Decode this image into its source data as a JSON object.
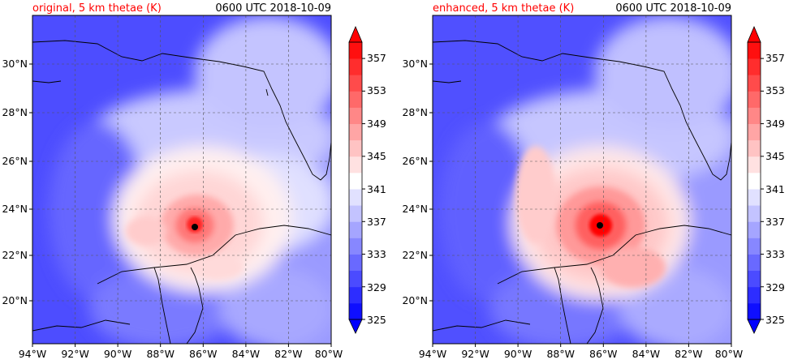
{
  "panels": [
    {
      "id": "original",
      "title_left": "original, 5 km thetae (K)",
      "title_right": "0600 UTC 2018-10-09"
    },
    {
      "id": "enhanced",
      "title_left": "enhanced, 5 km thetae (K)",
      "title_right": "0600 UTC 2018-10-09"
    }
  ],
  "title_left_color": "#ff0000",
  "title_right_color": "#000000",
  "longitude_ticks": [
    "94°W",
    "92°W",
    "90°W",
    "88°W",
    "86°W",
    "84°W",
    "82°W",
    "80°W"
  ],
  "latitude_ticks": [
    "30°N",
    "28°N",
    "26°N",
    "24°N",
    "22°N",
    "20°N"
  ],
  "colorbar": {
    "labels": [
      "357",
      "353",
      "349",
      "345",
      "341",
      "337",
      "333",
      "329",
      "325"
    ],
    "levels": [
      325,
      327,
      329,
      331,
      333,
      335,
      337,
      339,
      341,
      343,
      345,
      347,
      349,
      351,
      353,
      355,
      357,
      359
    ],
    "colormap": "bwr",
    "extend": "both",
    "low_color": "#0000ff",
    "high_color": "#ff0000"
  },
  "storm_center": {
    "lon": -86.3,
    "lat": 23.2
  }
}
